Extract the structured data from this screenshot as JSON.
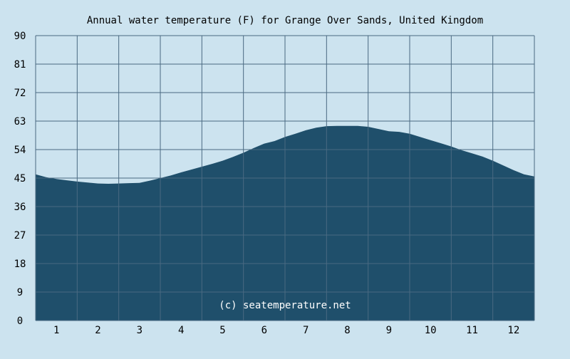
{
  "colors": {
    "background": "#cce3ef",
    "area_fill": "#1f4f6b",
    "grid": "#4a6a82",
    "text": "#000000",
    "watermark": "#ffffff"
  },
  "chart_data": {
    "type": "area",
    "title": "Annual water temperature (F) for Grange Over Sands, United Kingdom",
    "xlabel": "",
    "ylabel": "",
    "ylim": [
      0,
      90
    ],
    "yticks": [
      0,
      9,
      18,
      27,
      36,
      45,
      54,
      63,
      72,
      81,
      90
    ],
    "xticks": [
      "1",
      "2",
      "3",
      "4",
      "5",
      "6",
      "7",
      "8",
      "9",
      "10",
      "11",
      "12"
    ],
    "xlim": [
      0.5,
      12.5
    ],
    "grid": true,
    "watermark": "(c) seatemperature.net",
    "x": [
      0.5,
      0.75,
      1.0,
      1.25,
      1.5,
      1.75,
      2.0,
      2.25,
      2.5,
      2.75,
      3.0,
      3.25,
      3.5,
      3.75,
      4.0,
      4.25,
      4.5,
      4.75,
      5.0,
      5.25,
      5.5,
      5.75,
      6.0,
      6.25,
      6.5,
      6.75,
      7.0,
      7.25,
      7.5,
      7.75,
      8.0,
      8.25,
      8.5,
      8.75,
      9.0,
      9.25,
      9.5,
      9.75,
      10.0,
      10.25,
      10.5,
      10.75,
      11.0,
      11.25,
      11.5,
      11.75,
      12.0,
      12.25,
      12.5
    ],
    "series": [
      {
        "values": [
          46.2,
          45.3,
          44.7,
          44.3,
          43.9,
          43.6,
          43.3,
          43.2,
          43.3,
          43.4,
          43.5,
          44.2,
          45.0,
          45.8,
          46.8,
          47.7,
          48.6,
          49.5,
          50.5,
          51.7,
          53.0,
          54.5,
          55.9,
          56.7,
          58.0,
          59.0,
          60.1,
          60.9,
          61.4,
          61.5,
          61.5,
          61.5,
          61.2,
          60.5,
          59.8,
          59.6,
          59.0,
          58.0,
          57.0,
          56.0,
          55.0,
          53.8,
          52.8,
          51.8,
          50.5,
          49.0,
          47.5,
          46.2,
          45.5
        ]
      }
    ]
  }
}
